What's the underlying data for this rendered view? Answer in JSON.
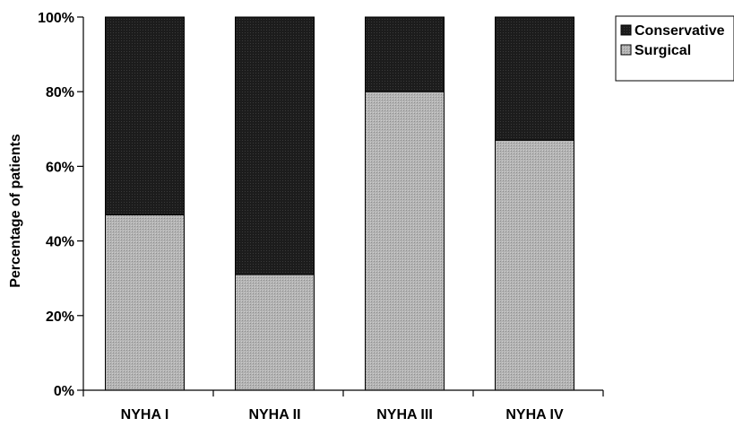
{
  "chart_data": {
    "type": "bar",
    "stacked": true,
    "percent": true,
    "categories": [
      "NYHA I",
      "NYHA II",
      "NYHA III",
      "NYHA IV"
    ],
    "series": [
      {
        "name": "Surgical",
        "values": [
          47,
          31,
          80,
          67
        ],
        "color": "#a9a9a9"
      },
      {
        "name": "Conservative",
        "values": [
          53,
          69,
          20,
          33
        ],
        "color": "#1c1c1c"
      }
    ],
    "ylabel": "Percentage of patients",
    "ylim": [
      0,
      100
    ],
    "yticks": [
      "0%",
      "20%",
      "40%",
      "60%",
      "80%",
      "100%"
    ],
    "yticks_values": [
      0,
      20,
      40,
      60,
      80,
      100
    ],
    "legend": {
      "position": "top-right",
      "items": [
        "Conservative",
        "Surgical"
      ]
    },
    "grid": false
  }
}
